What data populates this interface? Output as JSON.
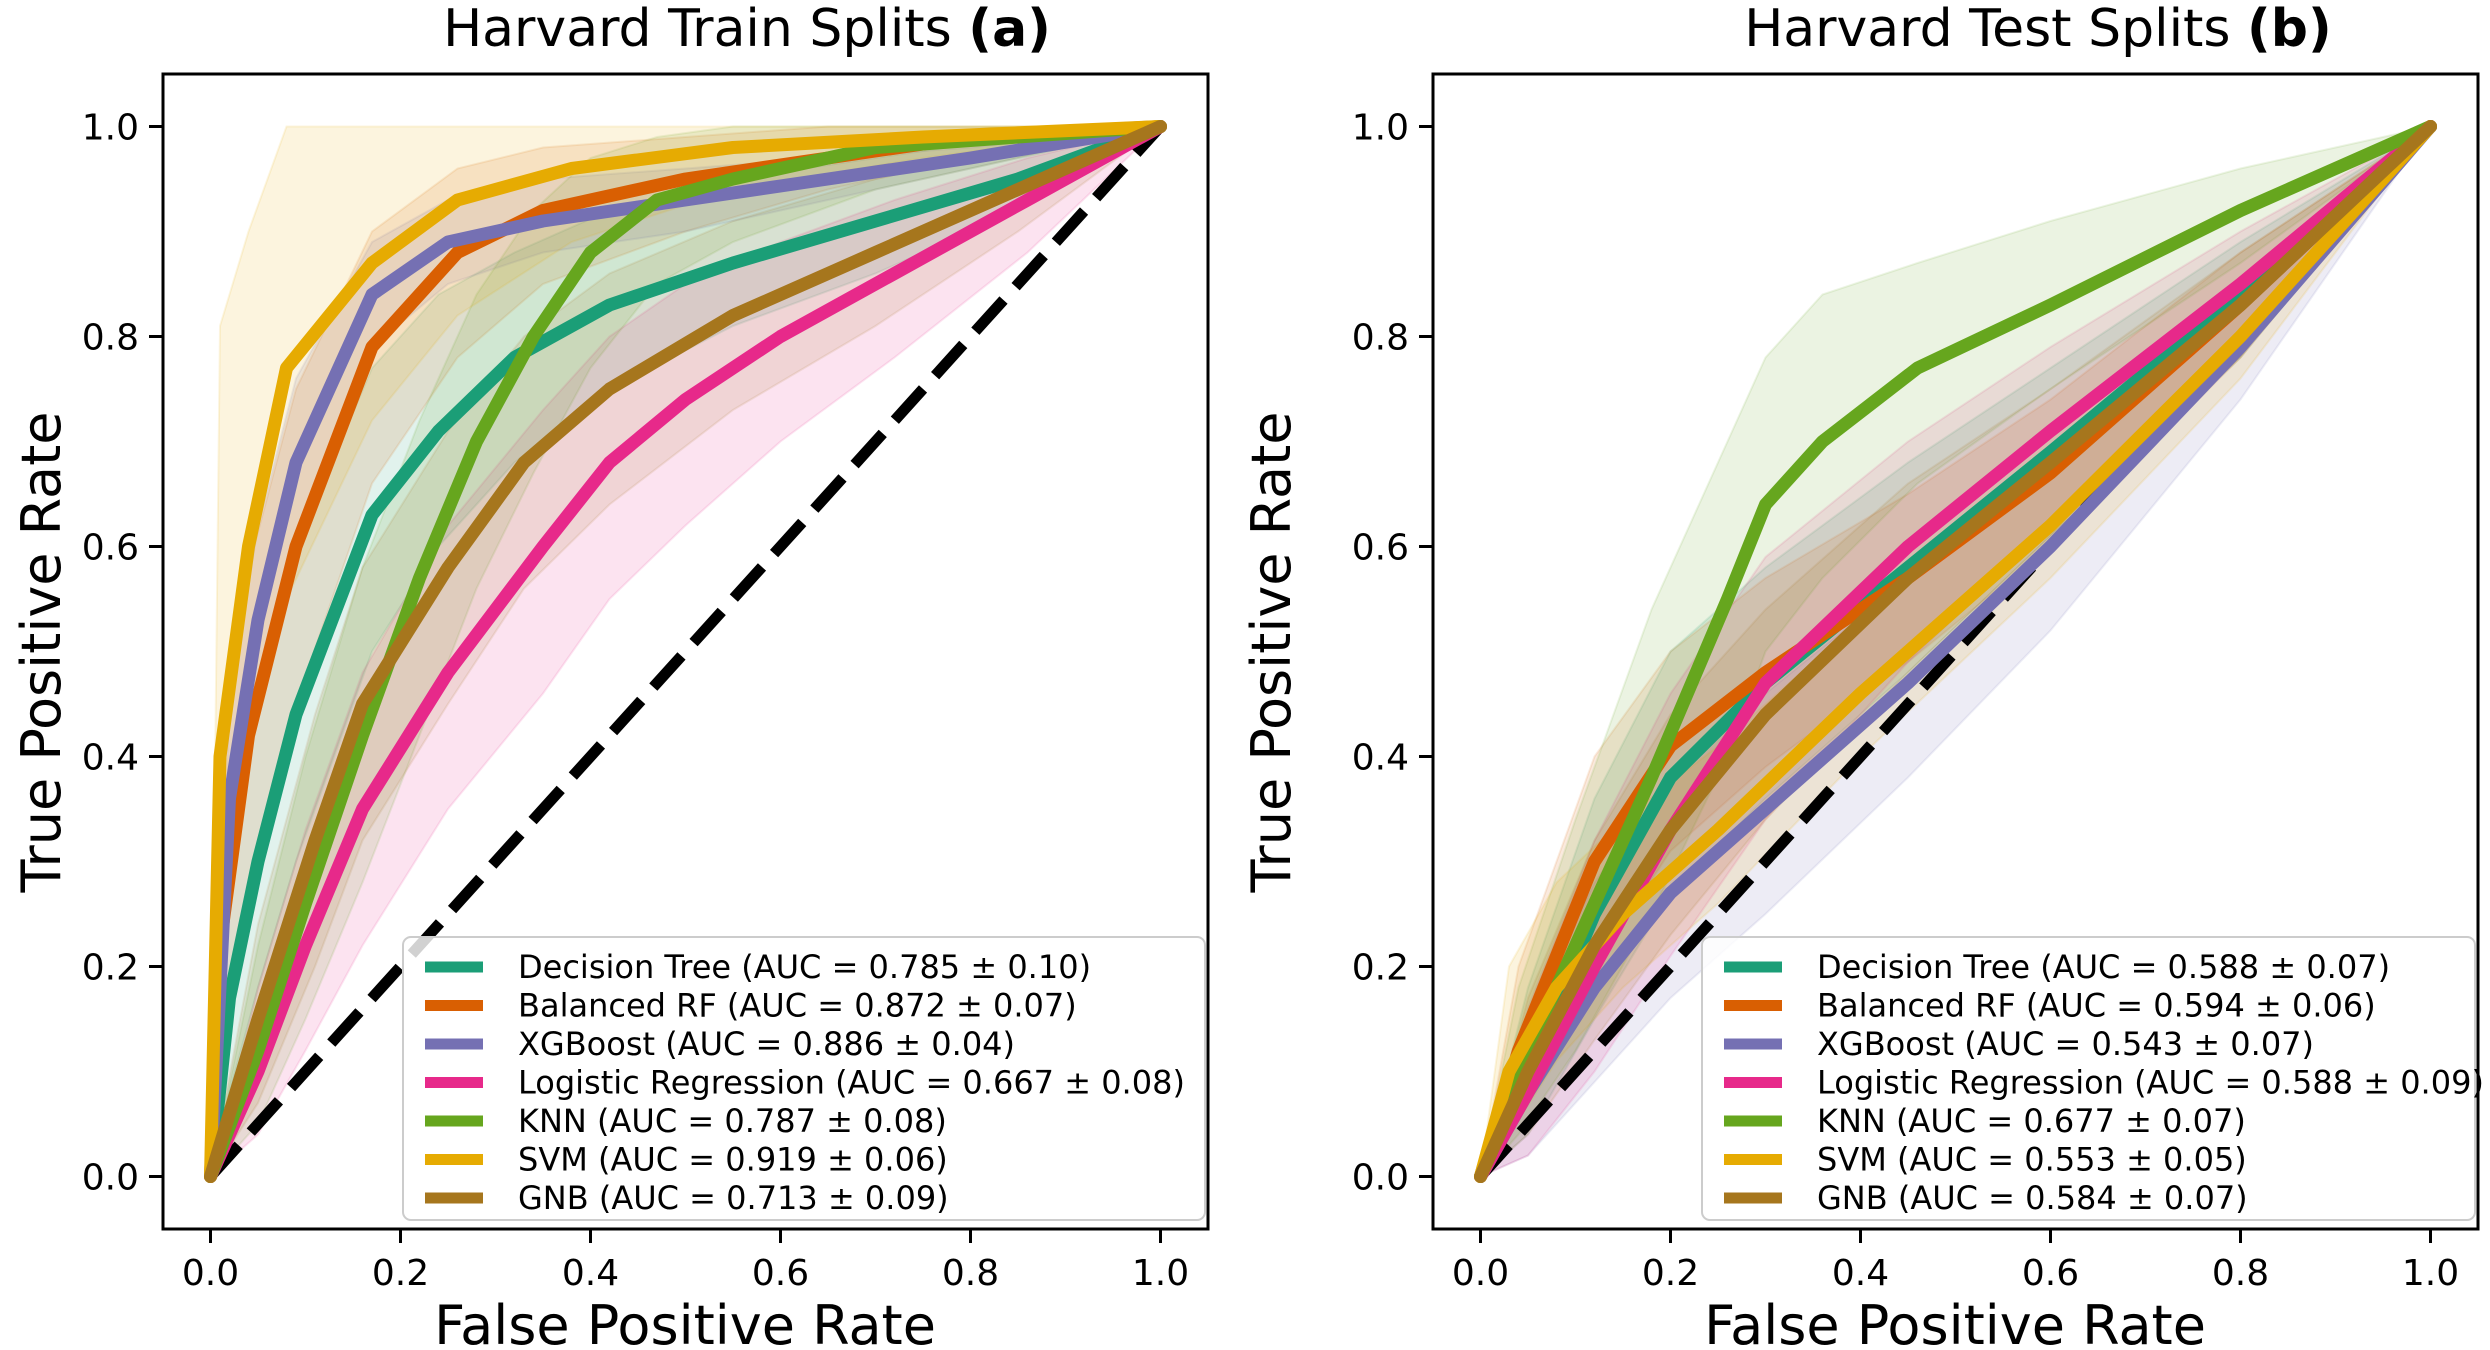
{
  "chart_data": [
    {
      "type": "line",
      "title_main": "Harvard Train Splits ",
      "title_tag": "(a)",
      "xlabel": "False Positive Rate",
      "ylabel": "True Positive Rate",
      "xlim": [
        -0.05,
        1.05
      ],
      "ylim": [
        -0.05,
        1.05
      ],
      "xticks": [
        "0.0",
        "0.2",
        "0.4",
        "0.6",
        "0.8",
        "1.0"
      ],
      "yticks": [
        "0.0",
        "0.2",
        "0.4",
        "0.6",
        "0.8",
        "1.0"
      ],
      "legend_position": "lower right",
      "diagonal": [
        [
          0,
          0
        ],
        [
          1,
          1
        ]
      ],
      "series": [
        {
          "name": "Decision Tree (AUC = 0.785 ± 0.10)",
          "color": "#1b9e77",
          "x": [
            0,
            0.02,
            0.05,
            0.09,
            0.17,
            0.24,
            0.32,
            0.42,
            0.55,
            0.7,
            0.85,
            1.0
          ],
          "y": [
            0,
            0.17,
            0.3,
            0.44,
            0.63,
            0.71,
            0.78,
            0.83,
            0.87,
            0.91,
            0.95,
            1.0
          ],
          "lower": [
            0,
            0.08,
            0.18,
            0.3,
            0.5,
            0.6,
            0.68,
            0.75,
            0.81,
            0.86,
            0.92,
            1.0
          ],
          "upper": [
            0,
            0.3,
            0.45,
            0.6,
            0.77,
            0.84,
            0.88,
            0.92,
            0.95,
            0.97,
            0.99,
            1.0
          ]
        },
        {
          "name": "Balanced RF (AUC = 0.872 ± 0.07)",
          "color": "#d95f02",
          "x": [
            0,
            0.01,
            0.04,
            0.09,
            0.17,
            0.26,
            0.35,
            0.5,
            0.65,
            0.8,
            1.0
          ],
          "y": [
            0,
            0.22,
            0.42,
            0.6,
            0.79,
            0.88,
            0.92,
            0.95,
            0.97,
            0.99,
            1.0
          ],
          "lower": [
            0,
            0.1,
            0.28,
            0.45,
            0.66,
            0.78,
            0.85,
            0.9,
            0.94,
            0.97,
            1.0
          ],
          "upper": [
            0,
            0.38,
            0.58,
            0.75,
            0.9,
            0.96,
            0.98,
            0.99,
            1.0,
            1.0,
            1.0
          ]
        },
        {
          "name": "XGBoost (AUC = 0.886 ± 0.04)",
          "color": "#7570b3",
          "x": [
            0,
            0.02,
            0.05,
            0.09,
            0.17,
            0.25,
            0.35,
            0.5,
            0.65,
            0.8,
            1.0
          ],
          "y": [
            0,
            0.36,
            0.53,
            0.68,
            0.84,
            0.89,
            0.91,
            0.93,
            0.95,
            0.97,
            1.0
          ],
          "lower": [
            0,
            0.28,
            0.45,
            0.61,
            0.79,
            0.85,
            0.88,
            0.9,
            0.93,
            0.96,
            1.0
          ],
          "upper": [
            0,
            0.45,
            0.62,
            0.76,
            0.89,
            0.93,
            0.95,
            0.96,
            0.97,
            0.98,
            1.0
          ]
        },
        {
          "name": "Logistic Regression (AUC = 0.667 ± 0.08)",
          "color": "#e7298a",
          "x": [
            0,
            0.05,
            0.1,
            0.16,
            0.25,
            0.35,
            0.42,
            0.5,
            0.6,
            0.72,
            0.86,
            1.0
          ],
          "y": [
            0,
            0.1,
            0.22,
            0.35,
            0.48,
            0.6,
            0.68,
            0.74,
            0.8,
            0.86,
            0.93,
            1.0
          ],
          "lower": [
            0,
            0.04,
            0.12,
            0.22,
            0.35,
            0.46,
            0.55,
            0.62,
            0.7,
            0.78,
            0.88,
            1.0
          ],
          "upper": [
            0,
            0.18,
            0.33,
            0.48,
            0.62,
            0.73,
            0.8,
            0.85,
            0.89,
            0.93,
            0.97,
            1.0
          ]
        },
        {
          "name": "KNN (AUC = 0.787 ± 0.08)",
          "color": "#66a61e",
          "x": [
            0,
            0.05,
            0.1,
            0.16,
            0.22,
            0.28,
            0.34,
            0.4,
            0.47,
            0.55,
            0.7,
            0.85,
            1.0
          ],
          "y": [
            0,
            0.12,
            0.26,
            0.42,
            0.57,
            0.7,
            0.8,
            0.88,
            0.93,
            0.95,
            0.98,
            0.99,
            1.0
          ],
          "lower": [
            0,
            0.05,
            0.15,
            0.28,
            0.42,
            0.56,
            0.67,
            0.77,
            0.85,
            0.89,
            0.94,
            0.97,
            1.0
          ],
          "upper": [
            0,
            0.22,
            0.4,
            0.58,
            0.72,
            0.84,
            0.92,
            0.97,
            0.99,
            1.0,
            1.0,
            1.0,
            1.0
          ]
        },
        {
          "name": "SVM (AUC = 0.919 ± 0.06)",
          "color": "#e6ab02",
          "x": [
            0,
            0.01,
            0.04,
            0.08,
            0.17,
            0.26,
            0.38,
            0.55,
            0.75,
            1.0
          ],
          "y": [
            0,
            0.4,
            0.6,
            0.77,
            0.87,
            0.93,
            0.96,
            0.98,
            0.99,
            1.0
          ],
          "lower": [
            0,
            0.22,
            0.4,
            0.55,
            0.72,
            0.82,
            0.89,
            0.94,
            0.97,
            1.0
          ],
          "upper": [
            0,
            0.81,
            0.9,
            1.0,
            1.0,
            1.0,
            1.0,
            1.0,
            1.0,
            1.0
          ]
        },
        {
          "name": "GNB (AUC = 0.713 ± 0.09)",
          "color": "#a6761d",
          "x": [
            0,
            0.05,
            0.11,
            0.16,
            0.25,
            0.33,
            0.42,
            0.55,
            0.7,
            0.85,
            1.0
          ],
          "y": [
            0,
            0.15,
            0.32,
            0.45,
            0.58,
            0.68,
            0.75,
            0.82,
            0.88,
            0.94,
            1.0
          ],
          "lower": [
            0,
            0.07,
            0.2,
            0.32,
            0.45,
            0.56,
            0.64,
            0.73,
            0.81,
            0.9,
            1.0
          ],
          "upper": [
            0,
            0.24,
            0.44,
            0.58,
            0.71,
            0.8,
            0.86,
            0.91,
            0.95,
            0.98,
            1.0
          ]
        }
      ]
    },
    {
      "type": "line",
      "title_main": "Harvard Test Splits ",
      "title_tag": "(b)",
      "xlabel": "False Positive Rate",
      "ylabel": "True Positive Rate",
      "xlim": [
        -0.05,
        1.05
      ],
      "ylim": [
        -0.05,
        1.05
      ],
      "xticks": [
        "0.0",
        "0.2",
        "0.4",
        "0.6",
        "0.8",
        "1.0"
      ],
      "yticks": [
        "0.0",
        "0.2",
        "0.4",
        "0.6",
        "0.8",
        "1.0"
      ],
      "legend_position": "lower right",
      "diagonal": [
        [
          0,
          0
        ],
        [
          1,
          1
        ]
      ],
      "series": [
        {
          "name": "Decision Tree (AUC = 0.588 ± 0.07)",
          "color": "#1b9e77",
          "x": [
            0,
            0.05,
            0.12,
            0.2,
            0.3,
            0.45,
            0.6,
            0.8,
            1.0
          ],
          "y": [
            0,
            0.1,
            0.25,
            0.38,
            0.47,
            0.58,
            0.69,
            0.84,
            1.0
          ],
          "lower": [
            0,
            0.04,
            0.15,
            0.27,
            0.36,
            0.48,
            0.61,
            0.78,
            1.0
          ],
          "upper": [
            0,
            0.18,
            0.36,
            0.5,
            0.58,
            0.68,
            0.77,
            0.89,
            1.0
          ]
        },
        {
          "name": "Balanced RF (AUC = 0.594 ± 0.06)",
          "color": "#d95f02",
          "x": [
            0,
            0.04,
            0.12,
            0.2,
            0.3,
            0.45,
            0.6,
            0.8,
            1.0
          ],
          "y": [
            0,
            0.12,
            0.3,
            0.41,
            0.48,
            0.57,
            0.67,
            0.83,
            1.0
          ],
          "lower": [
            0,
            0.06,
            0.2,
            0.31,
            0.39,
            0.49,
            0.6,
            0.78,
            1.0
          ],
          "upper": [
            0,
            0.2,
            0.4,
            0.5,
            0.57,
            0.65,
            0.74,
            0.88,
            1.0
          ]
        },
        {
          "name": "XGBoost (AUC = 0.543 ± 0.07)",
          "color": "#7570b3",
          "x": [
            0,
            0.05,
            0.12,
            0.2,
            0.3,
            0.45,
            0.6,
            0.8,
            1.0
          ],
          "y": [
            0,
            0.08,
            0.18,
            0.27,
            0.35,
            0.47,
            0.6,
            0.79,
            1.0
          ],
          "lower": [
            0,
            0.02,
            0.09,
            0.17,
            0.25,
            0.38,
            0.52,
            0.74,
            1.0
          ],
          "upper": [
            0,
            0.15,
            0.28,
            0.38,
            0.46,
            0.57,
            0.68,
            0.85,
            1.0
          ]
        },
        {
          "name": "Logistic Regression (AUC = 0.588 ± 0.09)",
          "color": "#e7298a",
          "x": [
            0,
            0.05,
            0.12,
            0.2,
            0.3,
            0.45,
            0.6,
            0.8,
            1.0
          ],
          "y": [
            0,
            0.08,
            0.2,
            0.33,
            0.47,
            0.6,
            0.71,
            0.85,
            1.0
          ],
          "lower": [
            0,
            0.02,
            0.1,
            0.21,
            0.34,
            0.49,
            0.62,
            0.79,
            1.0
          ],
          "upper": [
            0,
            0.16,
            0.32,
            0.46,
            0.59,
            0.7,
            0.79,
            0.9,
            1.0
          ]
        },
        {
          "name": "KNN (AUC = 0.677 ± 0.07)",
          "color": "#66a61e",
          "x": [
            0,
            0.04,
            0.1,
            0.18,
            0.26,
            0.3,
            0.36,
            0.46,
            0.6,
            0.8,
            1.0
          ],
          "y": [
            0,
            0.1,
            0.22,
            0.38,
            0.55,
            0.64,
            0.7,
            0.77,
            0.83,
            0.92,
            1.0
          ],
          "lower": [
            0,
            0.04,
            0.12,
            0.25,
            0.4,
            0.5,
            0.57,
            0.66,
            0.75,
            0.87,
            1.0
          ],
          "upper": [
            0,
            0.18,
            0.34,
            0.54,
            0.7,
            0.78,
            0.84,
            0.87,
            0.91,
            0.96,
            1.0
          ]
        },
        {
          "name": "SVM (AUC = 0.553 ± 0.05)",
          "color": "#e6ab02",
          "x": [
            0,
            0.03,
            0.08,
            0.15,
            0.25,
            0.4,
            0.6,
            0.8,
            1.0
          ],
          "y": [
            0,
            0.1,
            0.18,
            0.25,
            0.33,
            0.46,
            0.62,
            0.8,
            1.0
          ],
          "lower": [
            0,
            0.04,
            0.11,
            0.18,
            0.26,
            0.4,
            0.57,
            0.76,
            1.0
          ],
          "upper": [
            0,
            0.2,
            0.28,
            0.34,
            0.41,
            0.53,
            0.68,
            0.85,
            1.0
          ]
        },
        {
          "name": "GNB (AUC = 0.584 ± 0.07)",
          "color": "#a6761d",
          "x": [
            0,
            0.05,
            0.12,
            0.2,
            0.3,
            0.45,
            0.6,
            0.8,
            1.0
          ],
          "y": [
            0,
            0.1,
            0.22,
            0.33,
            0.44,
            0.57,
            0.68,
            0.83,
            1.0
          ],
          "lower": [
            0,
            0.04,
            0.13,
            0.23,
            0.34,
            0.48,
            0.61,
            0.78,
            1.0
          ],
          "upper": [
            0,
            0.17,
            0.32,
            0.44,
            0.54,
            0.66,
            0.75,
            0.88,
            1.0
          ]
        }
      ]
    }
  ]
}
